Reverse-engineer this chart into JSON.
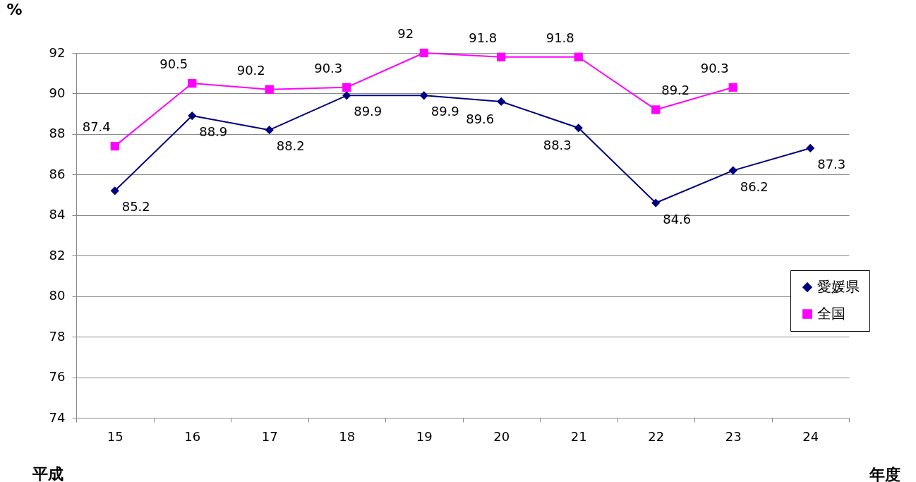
{
  "chart_data": {
    "type": "line",
    "ylabel": "%",
    "xlabel": "年度",
    "annotations": [
      "平成"
    ],
    "categories": [
      "15",
      "16",
      "17",
      "18",
      "19",
      "20",
      "21",
      "22",
      "23",
      "24"
    ],
    "series": [
      {
        "name": "愛媛県",
        "color": "#000080",
        "marker": "diamond",
        "values": [
          85.2,
          88.9,
          88.2,
          89.9,
          89.9,
          89.6,
          88.3,
          84.6,
          86.2,
          87.3
        ]
      },
      {
        "name": "全国",
        "color": "#ff00ff",
        "marker": "square",
        "values": [
          87.4,
          90.5,
          90.2,
          90.3,
          92,
          91.8,
          91.8,
          89.2,
          90.3,
          null
        ]
      }
    ],
    "ylim": [
      74,
      92
    ],
    "yticks": [
      74,
      76,
      78,
      80,
      82,
      84,
      86,
      88,
      90,
      92
    ],
    "grid": "y",
    "legend": "right",
    "data_labels": true,
    "line_style": "solid"
  }
}
